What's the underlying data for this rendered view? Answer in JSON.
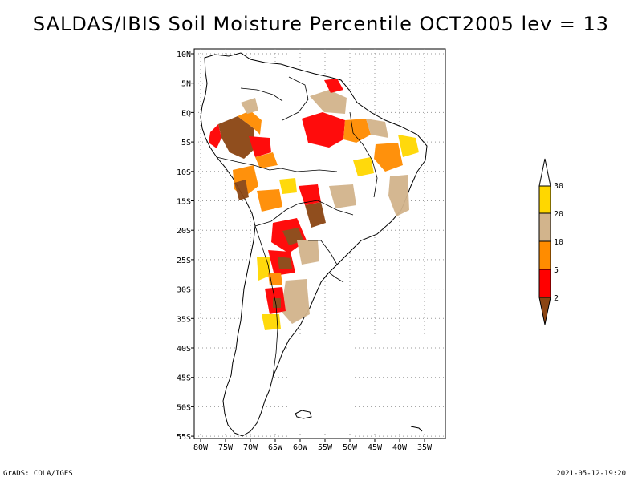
{
  "title": "SALDAS/IBIS Soil Moisture Percentile OCT2005 lev = 13",
  "map": {
    "lat_labels": [
      "10N",
      "5N",
      "EQ",
      "5S",
      "10S",
      "15S",
      "20S",
      "25S",
      "30S",
      "35S",
      "40S",
      "45S",
      "50S",
      "55S"
    ],
    "lon_labels": [
      "80W",
      "75W",
      "70W",
      "65W",
      "60W",
      "55W",
      "50W",
      "45W",
      "40W",
      "35W"
    ],
    "lon_range": [
      -80,
      -32
    ],
    "lat_range": [
      -56,
      11
    ]
  },
  "legend": {
    "levels": [
      "2",
      "5",
      "10",
      "20",
      "30"
    ],
    "colors": {
      "below_2": "#8b4513",
      "2_to_5": "#ff0000",
      "5_to_10": "#ff8c00",
      "10_to_20": "#d2b48c",
      "20_to_30": "#ffd700",
      "above_30": "#ffffff"
    }
  },
  "footer": {
    "left": "GrADS: COLA/IGES",
    "right": "2021-05-12-19:20"
  }
}
